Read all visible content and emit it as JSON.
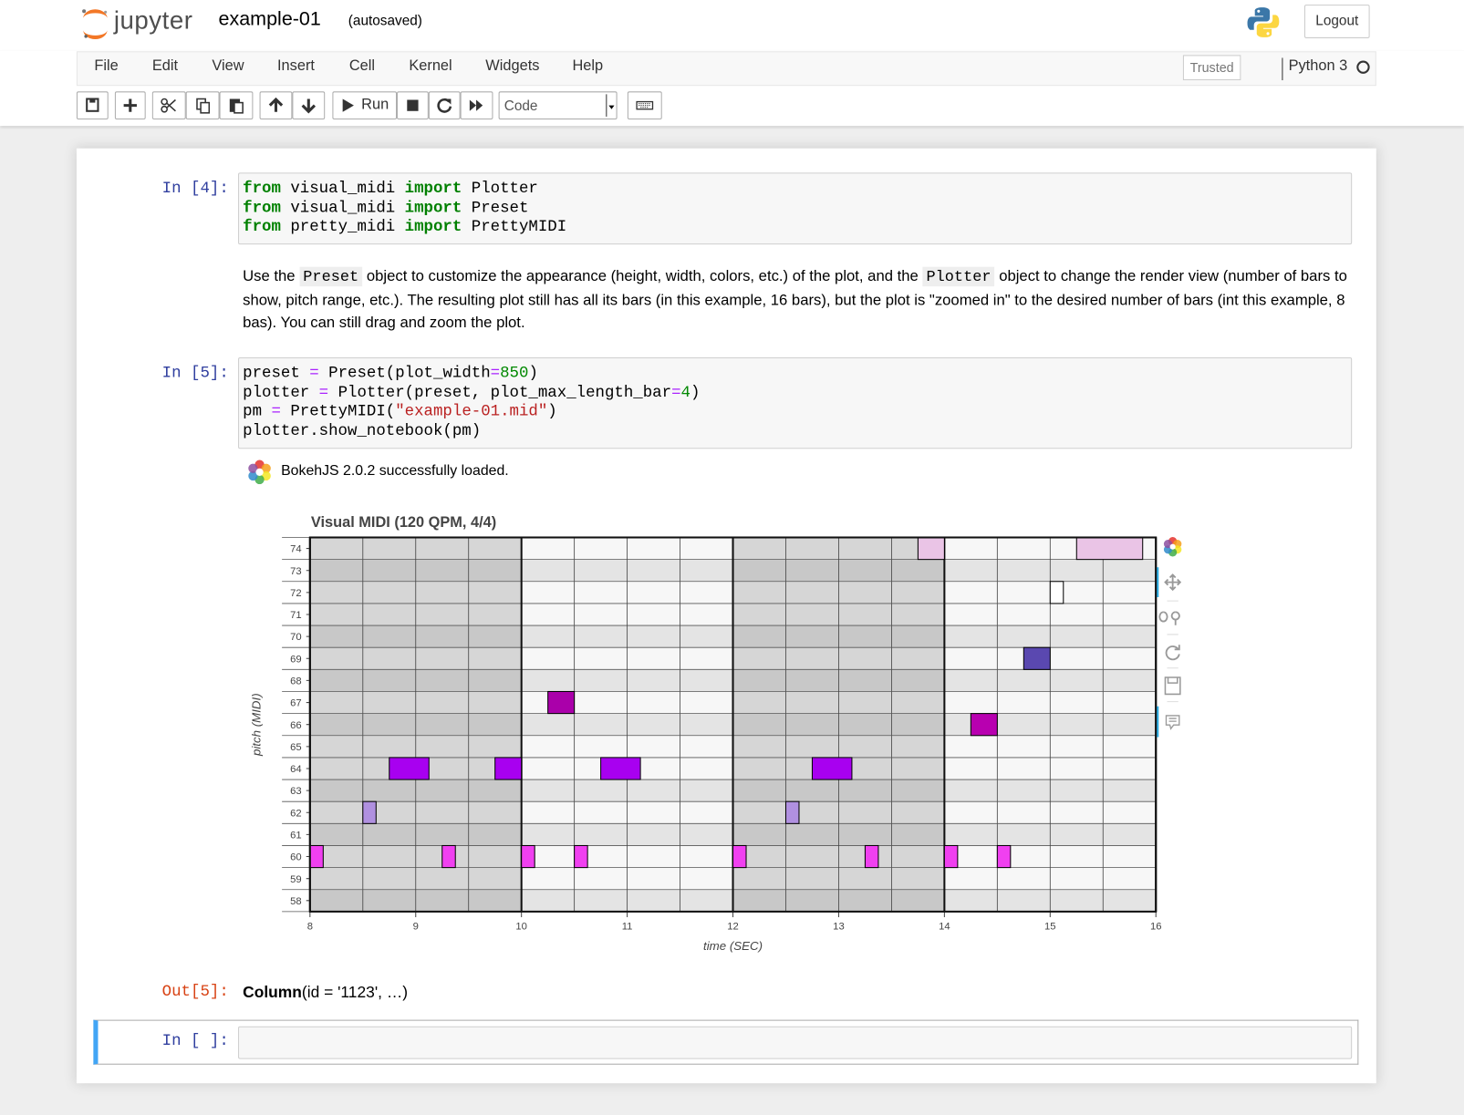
{
  "header": {
    "brand": "jupyter",
    "notebook": "example-01",
    "status": "(autosaved)",
    "logout": "Logout"
  },
  "menu": [
    "File",
    "Edit",
    "View",
    "Insert",
    "Cell",
    "Kernel",
    "Widgets",
    "Help"
  ],
  "trusted": "Trusted",
  "kernel": "Python 3",
  "toolbar": {
    "run": "Run",
    "cell_type": "Code"
  },
  "cell1": {
    "prompt": "In [4]:",
    "lines": [
      [
        {
          "t": "from",
          "c": "#008000",
          "b": true
        },
        {
          "t": " visual_midi "
        },
        {
          "t": "import",
          "c": "#008000",
          "b": true
        },
        {
          "t": " Plotter"
        }
      ],
      [
        {
          "t": "from",
          "c": "#008000",
          "b": true
        },
        {
          "t": " visual_midi "
        },
        {
          "t": "import",
          "c": "#008000",
          "b": true
        },
        {
          "t": " Preset"
        }
      ],
      [
        {
          "t": "from",
          "c": "#008000",
          "b": true
        },
        {
          "t": " pretty_midi "
        },
        {
          "t": "import",
          "c": "#008000",
          "b": true
        },
        {
          "t": " PrettyMIDI"
        }
      ]
    ]
  },
  "markdown": [
    {
      "t": "Use the "
    },
    {
      "t": "Preset",
      "code": true
    },
    {
      "t": " object to customize the appearance (height, width, colors, etc.) of the plot, and the "
    },
    {
      "t": "Plotter",
      "code": true
    },
    {
      "t": " object to change the render view (number of bars to show, pitch range, etc.). The resulting plot still has all its bars (in this example, 16 bars), but the plot is \"zoomed in\" to the desired number of bars (int this example, 8 bas). You can still drag and zoom the plot."
    }
  ],
  "cell2": {
    "prompt": "In [5]:",
    "lines": [
      [
        {
          "t": "preset "
        },
        {
          "t": "=",
          "c": "#aa22ff"
        },
        {
          "t": " Preset(plot_width"
        },
        {
          "t": "=",
          "c": "#aa22ff"
        },
        {
          "t": "850",
          "c": "#008800"
        },
        {
          "t": ")"
        }
      ],
      [
        {
          "t": "plotter "
        },
        {
          "t": "=",
          "c": "#aa22ff"
        },
        {
          "t": " Plotter(preset, plot_max_length_bar"
        },
        {
          "t": "=",
          "c": "#aa22ff"
        },
        {
          "t": "4",
          "c": "#008800"
        },
        {
          "t": ")"
        }
      ],
      [
        {
          "t": "pm "
        },
        {
          "t": "=",
          "c": "#aa22ff"
        },
        {
          "t": " PrettyMIDI("
        },
        {
          "t": "\"example-01.mid\"",
          "c": "#ba2121"
        },
        {
          "t": ")"
        }
      ],
      [
        {
          "t": "plotter.show_notebook(pm)"
        }
      ]
    ]
  },
  "bokeh_message": "BokehJS 2.0.2 successfully loaded.",
  "chart_data": {
    "type": "pianoroll",
    "title": "Visual MIDI (120 QPM, 4/4)",
    "xlabel": "time (SEC)",
    "ylabel": "pitch (MIDI)",
    "xlim": [
      8,
      16
    ],
    "xticks": [
      8,
      9,
      10,
      11,
      12,
      13,
      14,
      15,
      16
    ],
    "ylim": [
      57.5,
      74.5
    ],
    "yticks": [
      58,
      59,
      60,
      61,
      62,
      63,
      64,
      65,
      66,
      67,
      68,
      69,
      70,
      71,
      72,
      73,
      74
    ],
    "notes": [
      {
        "x": [
          13.75,
          14.0
        ],
        "pitch": 74,
        "color": "#eac4e6"
      },
      {
        "x": [
          15.25,
          15.875
        ],
        "pitch": 74,
        "color": "#eac4e6"
      },
      {
        "x": [
          15.0,
          15.125
        ],
        "pitch": 72,
        "color": "#ffffff"
      },
      {
        "x": [
          14.75,
          15.0
        ],
        "pitch": 69,
        "color": "#5a48b0"
      },
      {
        "x": [
          10.25,
          10.5
        ],
        "pitch": 67,
        "color": "#aa00aa"
      },
      {
        "x": [
          14.25,
          14.5
        ],
        "pitch": 66,
        "color": "#b800b0"
      },
      {
        "x": [
          8.75,
          9.125
        ],
        "pitch": 64,
        "color": "#a800f0"
      },
      {
        "x": [
          9.75,
          10.0
        ],
        "pitch": 64,
        "color": "#a800f0"
      },
      {
        "x": [
          10.75,
          11.125
        ],
        "pitch": 64,
        "color": "#a800f0"
      },
      {
        "x": [
          12.75,
          13.125
        ],
        "pitch": 64,
        "color": "#a800f0"
      },
      {
        "x": [
          8.5,
          8.625
        ],
        "pitch": 62,
        "color": "#b090e0"
      },
      {
        "x": [
          12.5,
          12.625
        ],
        "pitch": 62,
        "color": "#b090e0"
      },
      {
        "x": [
          8.0,
          8.125
        ],
        "pitch": 60,
        "color": "#f040f0"
      },
      {
        "x": [
          9.25,
          9.375
        ],
        "pitch": 60,
        "color": "#f040f0"
      },
      {
        "x": [
          10.0,
          10.125
        ],
        "pitch": 60,
        "color": "#f040f0"
      },
      {
        "x": [
          10.5,
          10.625
        ],
        "pitch": 60,
        "color": "#f040f0"
      },
      {
        "x": [
          12.0,
          12.125
        ],
        "pitch": 60,
        "color": "#f040f0"
      },
      {
        "x": [
          13.25,
          13.375
        ],
        "pitch": 60,
        "color": "#f040f0"
      },
      {
        "x": [
          14.0,
          14.125
        ],
        "pitch": 60,
        "color": "#f040f0"
      },
      {
        "x": [
          14.5,
          14.625
        ],
        "pitch": 60,
        "color": "#f040f0"
      }
    ]
  },
  "output": {
    "prompt": "Out[5]:",
    "parts": [
      {
        "t": "Column",
        "b": true
      },
      {
        "t": "(id = '1123', …)"
      }
    ]
  },
  "empty_cell": {
    "prompt": "In [ ]:"
  }
}
